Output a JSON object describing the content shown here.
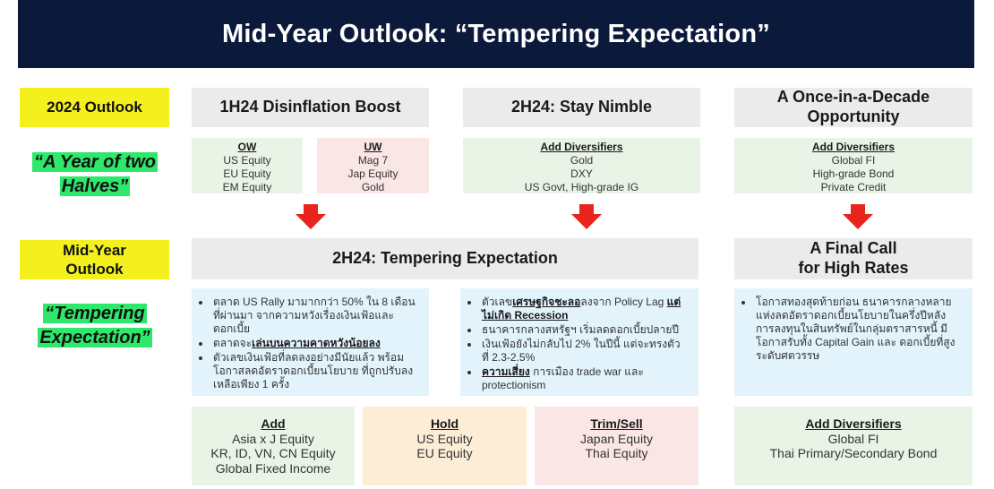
{
  "title": "Mid-Year Outlook: “Tempering Expectation”",
  "left": {
    "outlook_2024": "2024 Outlook",
    "quote_1_line1": "“A Year of two",
    "quote_1_line2": "Halves”",
    "midyear_line1": "Mid-Year",
    "midyear_line2": "Outlook",
    "quote_2_line1": "“Tempering",
    "quote_2_line2": "Expectation”"
  },
  "row1": {
    "h1": {
      "title": "1H24 Disinflation Boost"
    },
    "h2": {
      "title": "2H24: Stay Nimble"
    },
    "h3": {
      "line1": "A Once-in-a-Decade",
      "line2": "Opportunity"
    },
    "ow": {
      "head": "OW",
      "items": [
        "US Equity",
        "EU Equity",
        "EM Equity"
      ]
    },
    "uw": {
      "head": "UW",
      "items": [
        "Mag 7",
        "Jap Equity",
        "Gold"
      ]
    },
    "div1": {
      "head": "Add Diversifiers",
      "items": [
        "Gold",
        "DXY",
        "US Govt, High-grade IG"
      ]
    },
    "div2": {
      "head": "Add Diversifiers",
      "items": [
        "Global FI",
        "High-grade Bond",
        "Private Credit"
      ]
    }
  },
  "row2": {
    "h_main": {
      "title": "2H24: Tempering Expectation"
    },
    "h_right": {
      "line1": "A Final Call",
      "line2": "for High Rates"
    },
    "bullets_left": [
      {
        "pre": "ตลาด US Rally มามากกว่า 50% ใน 8 เดือนที่ผ่านมา จากความหวังเรื่องเงินเฟ้อและดอกเบี้ย",
        "bold": "",
        "post": ""
      },
      {
        "pre": "ตลาดจะ",
        "bold": "เล่นบนความคาดหวังน้อยลง",
        "post": ""
      },
      {
        "pre": "ตัวเลขเงินเฟ้อที่ลดลงอย่างมีนัยแล้ว พร้อมโอกาสลดอัตราดอกเบี้ยนโยบาย ที่ถูกปรับลงเหลือเพียง 1 ครั้ง",
        "bold": "",
        "post": ""
      }
    ],
    "bullets_mid": [
      {
        "pre": "ตัวเลข",
        "bold": "เศรษฐกิจชะลอ",
        "post": "ลงจาก Policy Lag ",
        "bold2": "แต่ไม่เกิด Recession"
      },
      {
        "pre": "ธนาคารกลางสหรัฐฯ เริ่มลดดอกเบี้ยปลายปี",
        "bold": "",
        "post": "",
        "bold2": ""
      },
      {
        "pre": "เงินเฟ้อยังไม่กลับไป 2% ในปีนี้ แต่จะทรงตัวที่ 2.3-2.5%",
        "bold": "",
        "post": "",
        "bold2": ""
      },
      {
        "pre": "",
        "bold": "ความเสี่ยง",
        "post": " การเมือง trade war และ protectionism",
        "bold2": ""
      }
    ],
    "bullets_right": [
      {
        "pre": "โอกาสทองสุดท้ายก่อน ธนาคารกลางหลายแห่งลดอัตราดอกเบี้ยนโยบายในครึ่งปีหลัง การลงทุนในสินทรัพย์ในกลุ่มตราสารหนี้ มีโอกาสรับทั้ง Capital Gain และ ดอกเบี้ยที่สูงระดับศตวรรษ",
        "bold": "",
        "post": ""
      }
    ]
  },
  "row3": {
    "add": {
      "head": "Add",
      "items": [
        "Asia x J Equity",
        "KR, ID, VN, CN Equity",
        "Global Fixed Income"
      ]
    },
    "hold": {
      "head": "Hold",
      "items": [
        "US Equity",
        "EU Equity"
      ]
    },
    "trim": {
      "head": "Trim/Sell",
      "items": [
        "Japan Equity",
        "Thai Equity"
      ]
    },
    "div": {
      "head": "Add Diversifiers",
      "items": [
        "Global FI",
        "Thai Primary/Secondary Bond"
      ]
    }
  },
  "colors": {
    "banner": "#0b1a3a",
    "tag": "#f4f01e",
    "highlight": "#2ee86b",
    "arrow": "#e8241c"
  }
}
